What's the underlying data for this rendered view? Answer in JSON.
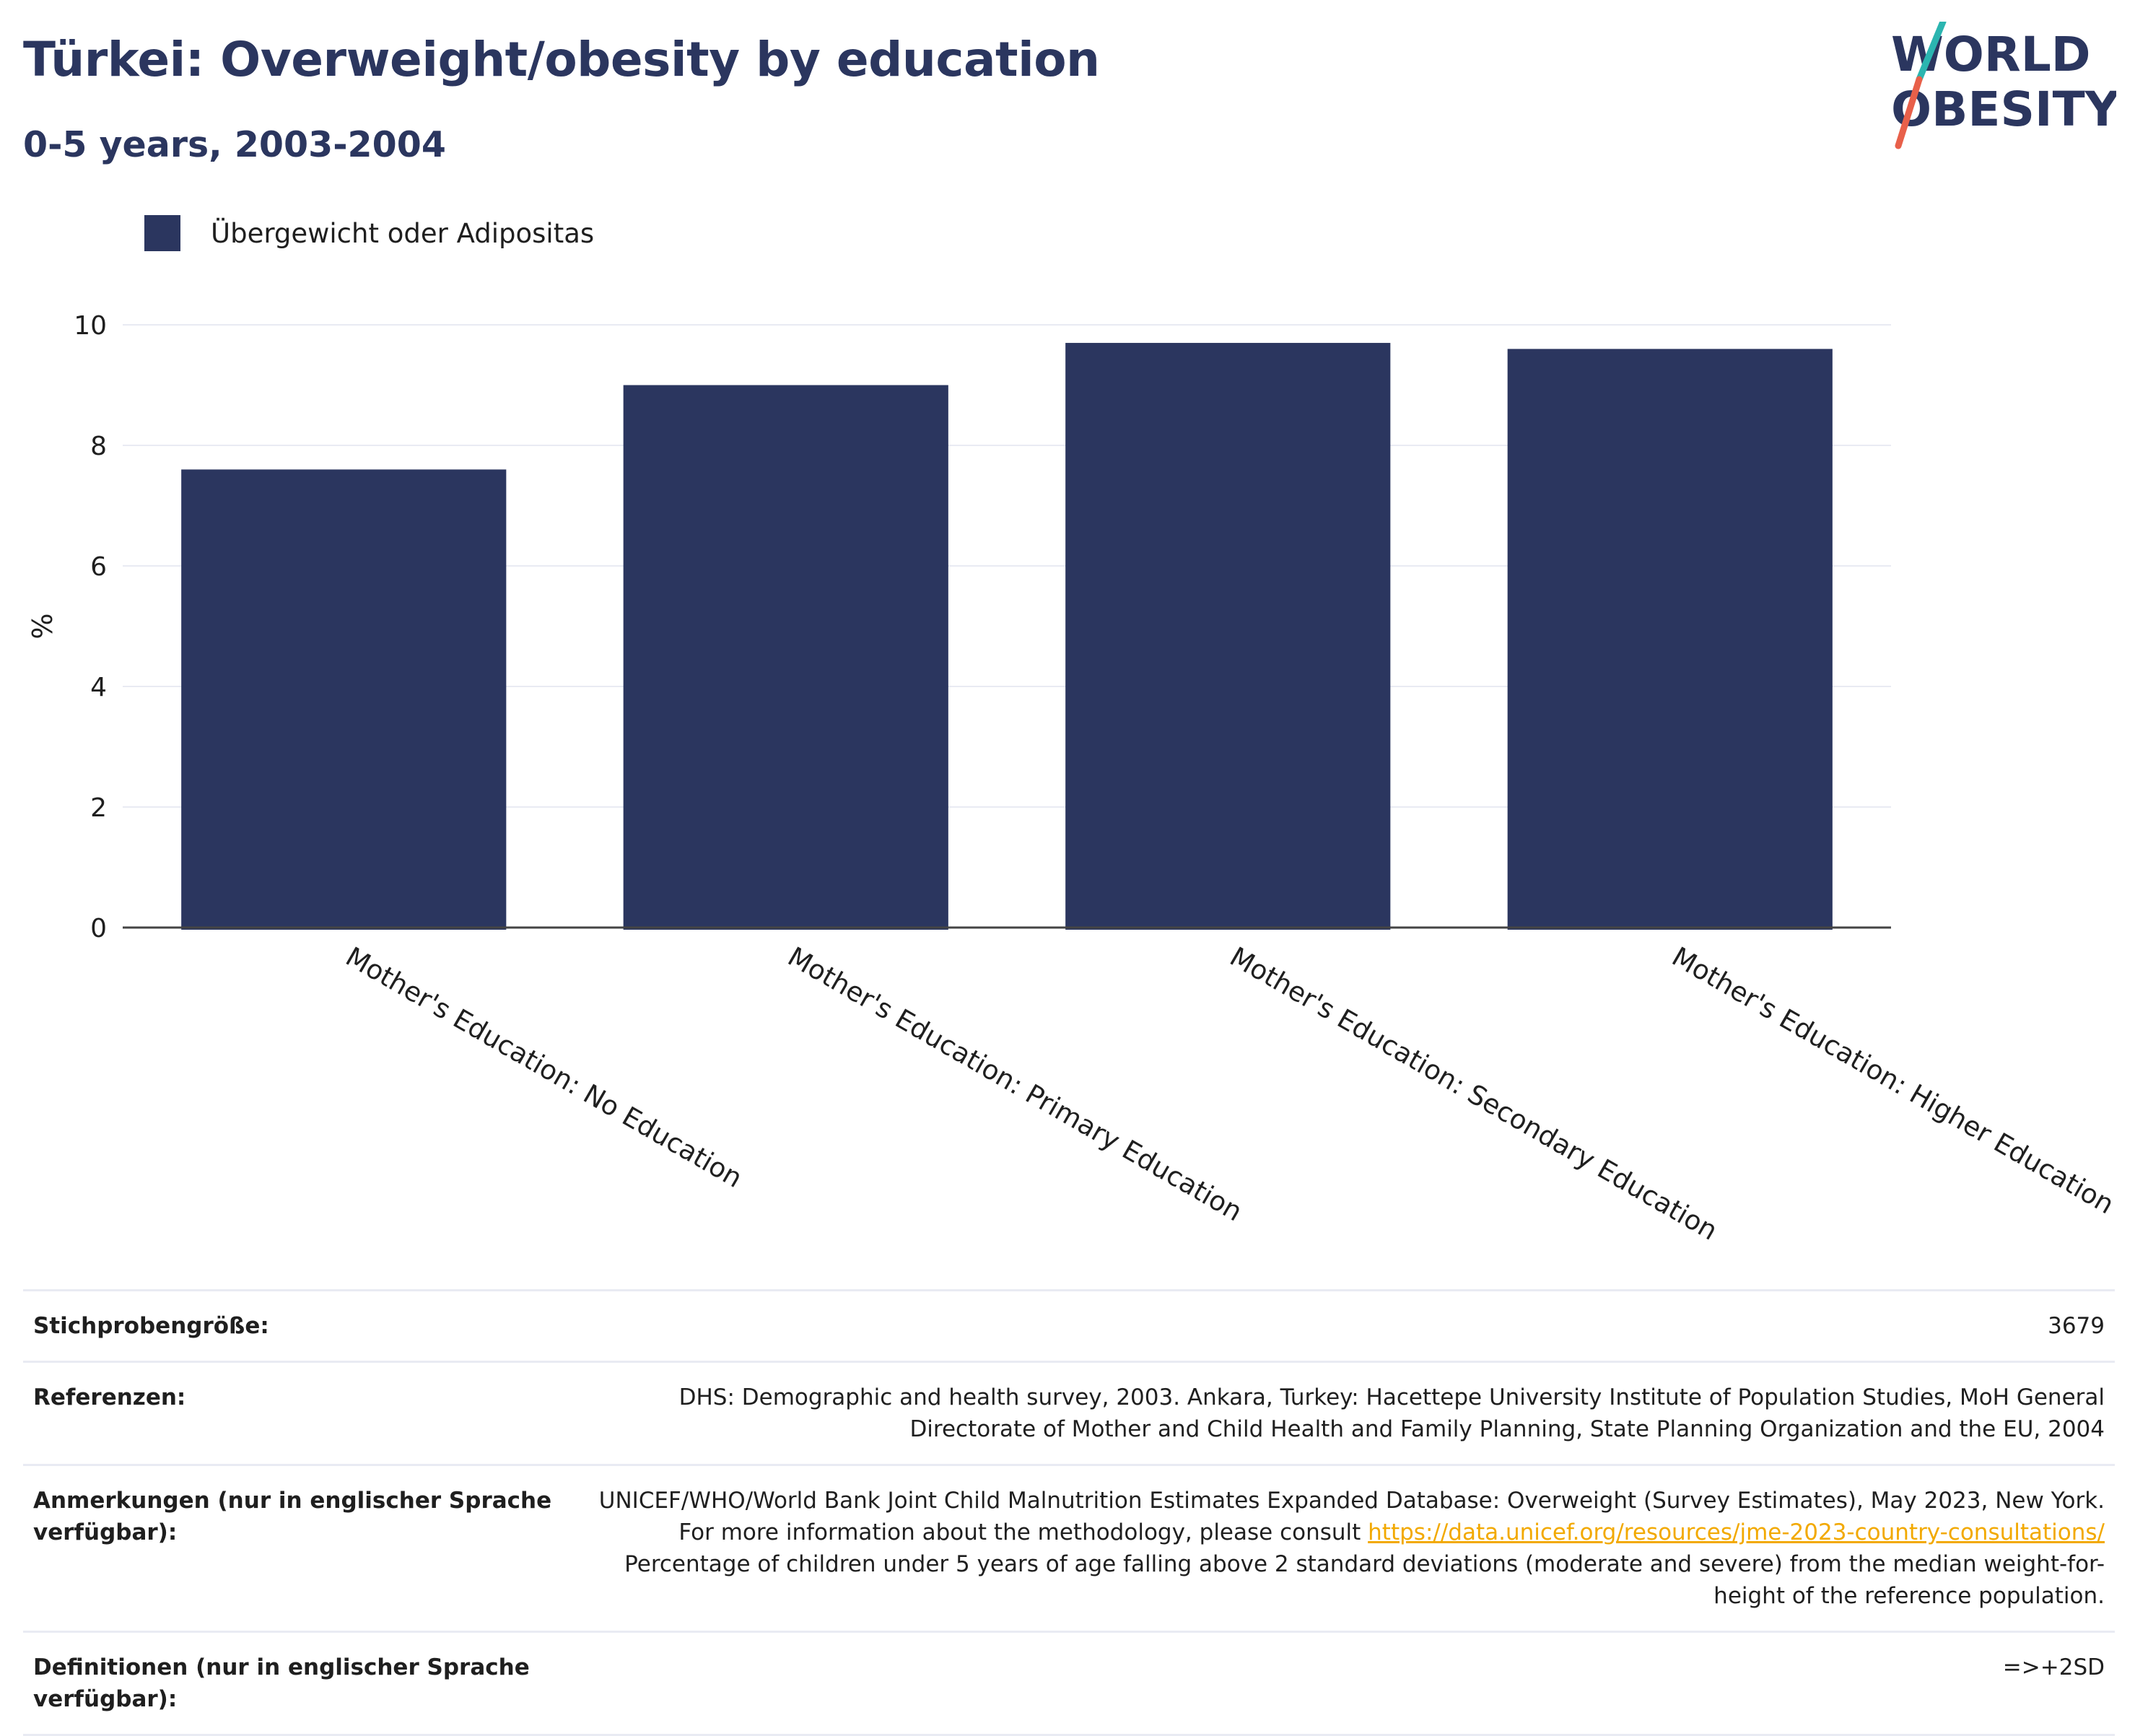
{
  "header": {
    "title": "Türkei: Overweight/obesity by education",
    "subtitle": "0-5 years, 2003-2004"
  },
  "logo": {
    "line1": "WORLD",
    "line2": "OBESITY",
    "colors": {
      "text": "#2b365f",
      "slash_top": "#2bb5b0",
      "slash_bottom": "#e8604a"
    }
  },
  "legend": {
    "items": [
      {
        "label": "Übergewicht oder Adipositas",
        "color": "#2b365f"
      }
    ]
  },
  "chart_data": {
    "type": "bar",
    "categories": [
      "Mother's Education: No Education",
      "Mother's Education: Primary Education",
      "Mother's Education: Secondary Education",
      "Mother's Education: Higher Education"
    ],
    "series": [
      {
        "name": "Übergewicht oder Adipositas",
        "values": [
          7.6,
          9.0,
          9.7,
          9.6
        ],
        "color": "#2b365f"
      }
    ],
    "ylabel": "%",
    "xlabel": "",
    "ylim": [
      0,
      10
    ],
    "yticks": [
      0,
      2,
      4,
      6,
      8,
      10
    ],
    "grid": true,
    "legend_position": "top-left"
  },
  "info": {
    "rows": [
      {
        "key": "Stichprobengröße:",
        "value": "3679"
      },
      {
        "key": "Referenzen:",
        "value": "DHS: Demographic and health survey, 2003. Ankara, Turkey: Hacettepe University Institute of Population Studies, MoH General Directorate of Mother and Child Health and Family Planning, State Planning Organization and the EU, 2004"
      },
      {
        "key": "Anmerkungen (nur in englischer Sprache verfügbar):",
        "value_before": "UNICEF/WHO/World Bank Joint Child Malnutrition Estimates Expanded Database: Overweight (Survey Estimates), May 2023, New York. For more information about the methodology, please consult ",
        "link": "https://data.unicef.org/resources/jme-2023-country-consultations/",
        "value_after": " Percentage of children under 5 years of age falling above 2 standard deviations (moderate and severe) from the median weight-for-height of the reference population."
      },
      {
        "key": "Definitionen (nur in englischer Sprache verfügbar):",
        "value": "=>+2SD"
      }
    ]
  }
}
